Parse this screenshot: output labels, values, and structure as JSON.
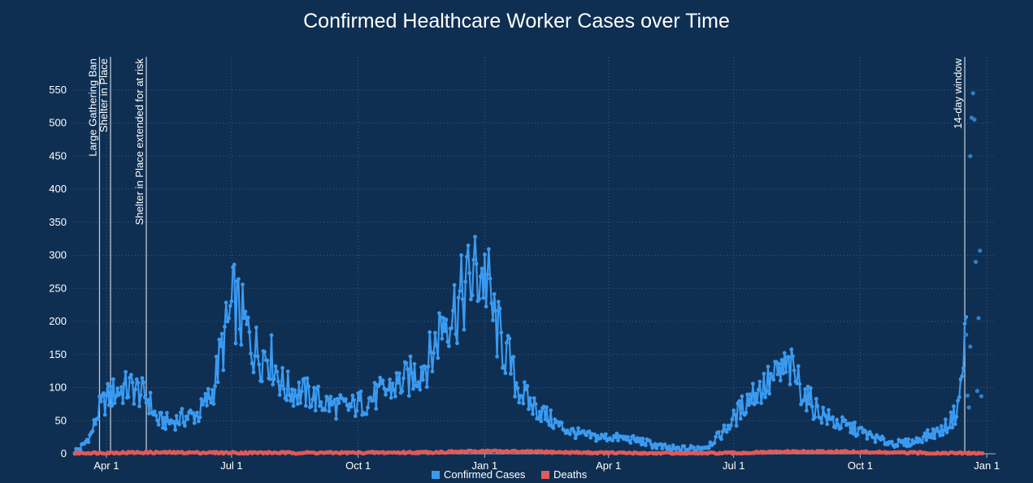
{
  "chart_data": {
    "type": "line",
    "title": "Confirmed Healthcare Worker Cases over Time",
    "xlabel": "",
    "ylabel": "",
    "ylim": [
      0,
      600
    ],
    "y_ticks": [
      0,
      50,
      100,
      150,
      200,
      250,
      300,
      350,
      400,
      450,
      500,
      550
    ],
    "x_ticks": [
      {
        "label": "Apr 1",
        "day": 23
      },
      {
        "label": "Jul 1",
        "day": 114
      },
      {
        "label": "Oct 1",
        "day": 206
      },
      {
        "label": "Jan 1",
        "day": 298
      },
      {
        "label": "Apr 1",
        "day": 388
      },
      {
        "label": "Jul 1",
        "day": 479
      },
      {
        "label": "Oct 1",
        "day": 571
      },
      {
        "label": "Jan 1",
        "day": 663
      }
    ],
    "x_range_days": [
      0,
      670
    ],
    "grid": true,
    "legend_position": "bottom-center",
    "annotations": [
      {
        "label": "Large Gathering Ban",
        "day": 18
      },
      {
        "label": "Shelter in Place",
        "day": 26
      },
      {
        "label": "Shelter in Place extended for at risk",
        "day": 52
      },
      {
        "label": "14-day window",
        "day": 647
      }
    ],
    "series": [
      {
        "name": "Confirmed Cases",
        "color": "#3a9af0",
        "anchor_days": [
          0,
          6,
          12,
          18,
          24,
          30,
          36,
          42,
          48,
          54,
          60,
          70,
          80,
          90,
          100,
          106,
          112,
          116,
          120,
          125,
          130,
          136,
          140,
          146,
          152,
          160,
          170,
          180,
          190,
          200,
          210,
          220,
          230,
          240,
          250,
          260,
          266,
          270,
          276,
          280,
          284,
          290,
          296,
          300,
          304,
          310,
          316,
          320,
          326,
          330,
          340,
          350,
          360,
          370,
          380,
          390,
          400,
          410,
          420,
          430,
          440,
          450,
          460,
          470,
          480,
          490,
          495,
          500,
          508,
          515,
          520,
          526,
          532,
          538,
          545,
          550,
          560,
          570,
          580,
          590,
          600,
          610,
          620,
          630,
          635,
          640,
          644,
          646,
          648
        ],
        "anchor_values": [
          3,
          12,
          30,
          68,
          85,
          95,
          98,
          100,
          92,
          80,
          50,
          48,
          55,
          60,
          92,
          150,
          200,
          232,
          210,
          185,
          160,
          150,
          155,
          130,
          100,
          95,
          90,
          78,
          72,
          70,
          78,
          88,
          100,
          110,
          125,
          150,
          195,
          210,
          220,
          230,
          250,
          270,
          275,
          262,
          210,
          170,
          140,
          110,
          90,
          78,
          62,
          45,
          34,
          28,
          25,
          25,
          23,
          20,
          14,
          8,
          6,
          8,
          12,
          30,
          55,
          85,
          95,
          100,
          112,
          125,
          128,
          110,
          85,
          70,
          58,
          50,
          42,
          35,
          25,
          18,
          15,
          18,
          28,
          35,
          45,
          60,
          95,
          145,
          195
        ],
        "tail_points": [
          [
            648,
            180
          ],
          [
            649,
            88
          ],
          [
            650,
            70
          ],
          [
            651,
            450
          ],
          [
            651,
            162
          ],
          [
            652,
            508
          ],
          [
            653,
            545
          ],
          [
            654,
            505
          ],
          [
            655,
            290
          ],
          [
            656,
            95
          ],
          [
            657,
            205
          ],
          [
            658,
            307
          ],
          [
            659,
            87
          ]
        ]
      },
      {
        "name": "Deaths",
        "color": "#e05a5a",
        "anchor_days": [
          0,
          50,
          120,
          200,
          250,
          280,
          300,
          330,
          360,
          400,
          450,
          480,
          520,
          560,
          600,
          640,
          660
        ],
        "anchor_values": [
          1,
          2,
          1.5,
          1.5,
          2,
          3,
          4,
          3,
          2,
          1,
          0.5,
          1,
          3,
          3,
          1.5,
          1,
          0.5
        ]
      }
    ],
    "legend": [
      {
        "label": "Confirmed Cases",
        "color": "#3a9af0"
      },
      {
        "label": "Deaths",
        "color": "#e05a5a"
      }
    ]
  }
}
